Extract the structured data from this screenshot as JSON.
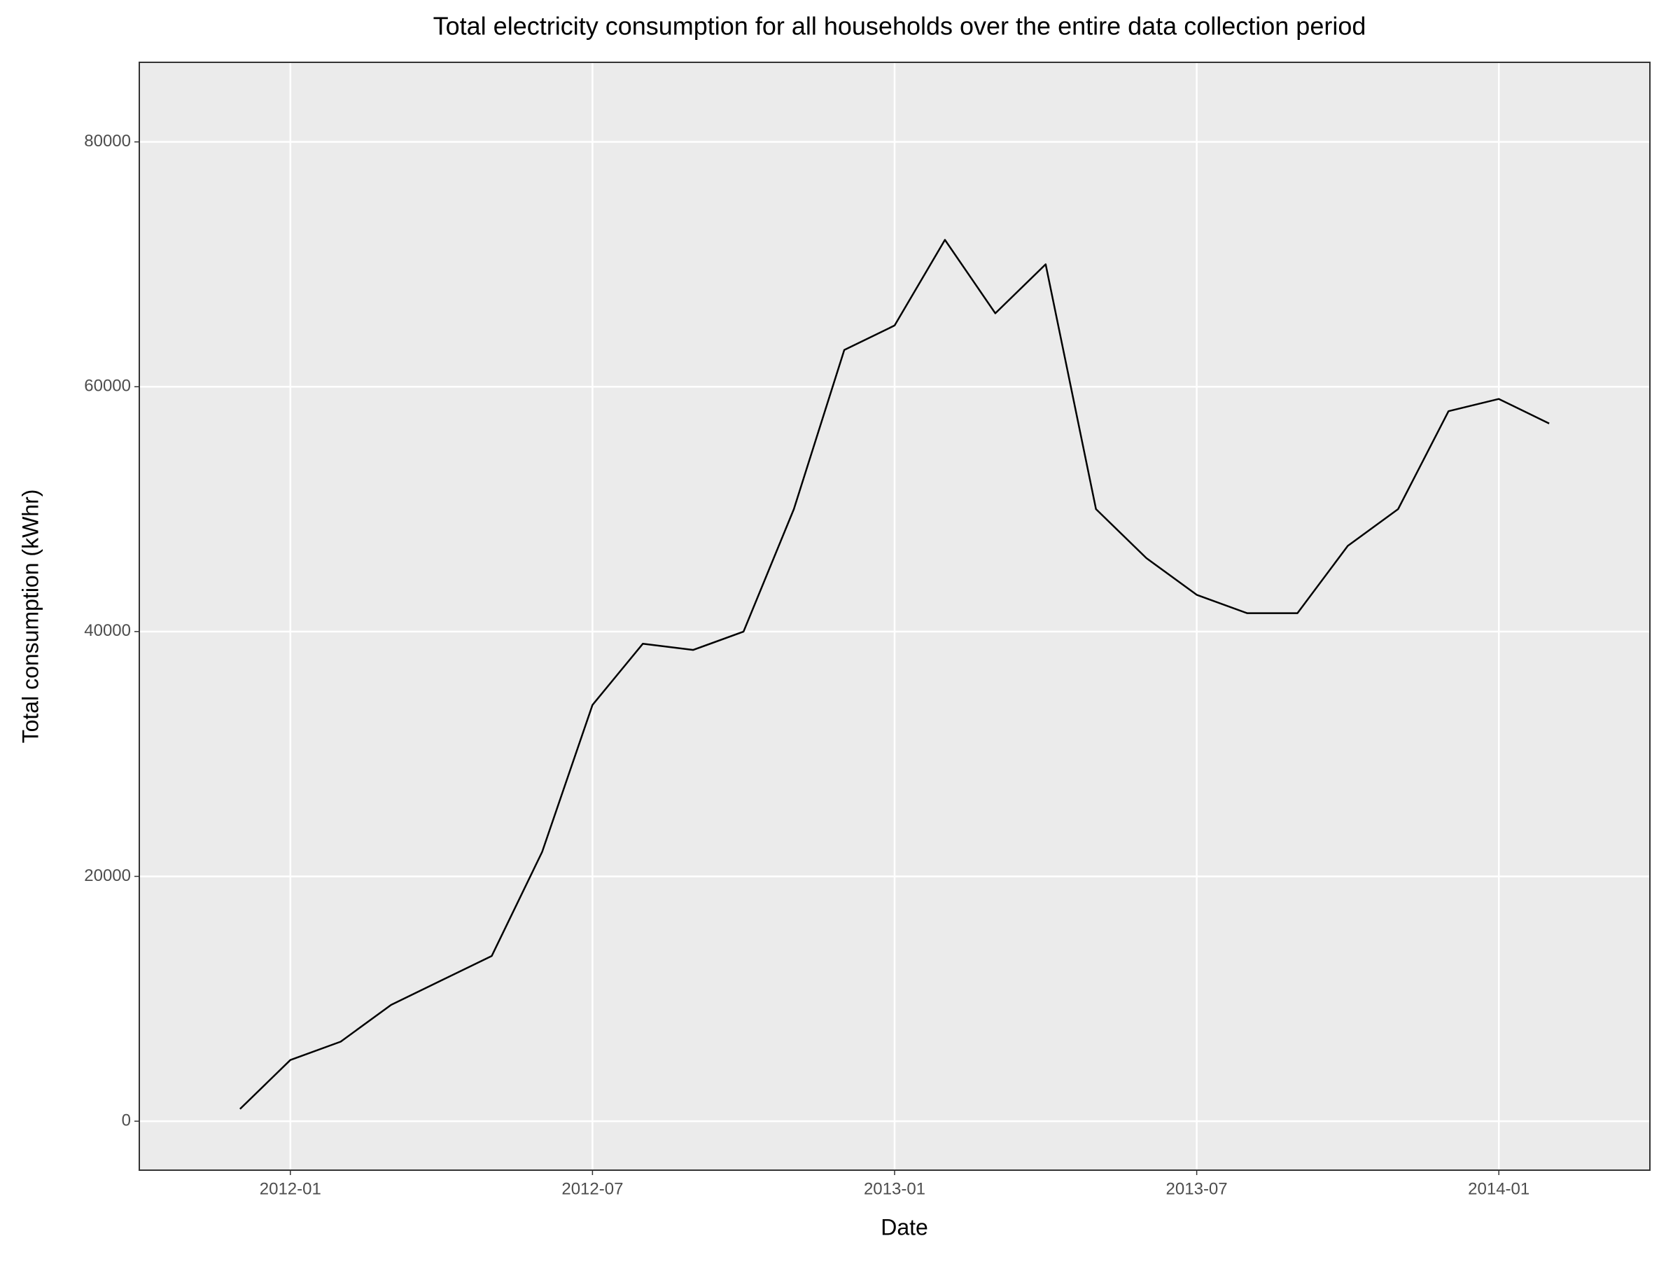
{
  "chart_data": {
    "type": "line",
    "title": "Total electricity consumption for all households over the entire data collection period",
    "x_label": "Date",
    "y_label": "Total consumption (kWhr)",
    "x": [
      "2011-12",
      "2012-01",
      "2012-02",
      "2012-03",
      "2012-04",
      "2012-05",
      "2012-06",
      "2012-07",
      "2012-08",
      "2012-09",
      "2012-10",
      "2012-11",
      "2012-12",
      "2013-01",
      "2013-02",
      "2013-03",
      "2013-04",
      "2013-05",
      "2013-06",
      "2013-07",
      "2013-08",
      "2013-09",
      "2013-10",
      "2013-11",
      "2013-12",
      "2014-01",
      "2014-02"
    ],
    "values": [
      1000,
      5000,
      6500,
      9500,
      11500,
      13500,
      22000,
      34000,
      39000,
      38500,
      40000,
      50000,
      63000,
      65000,
      72000,
      66000,
      70000,
      50000,
      46000,
      43000,
      41500,
      41500,
      47000,
      50000,
      58000,
      59000,
      57000
    ],
    "color": "#000000",
    "xlim": [
      "2011-10",
      "2014-04"
    ],
    "xticks": [
      "2012-01",
      "2012-07",
      "2013-01",
      "2013-07",
      "2014-01"
    ],
    "ylim": [
      -4000,
      86500
    ],
    "yticks": [
      0,
      20000,
      40000,
      60000,
      80000
    ],
    "grid": true
  }
}
